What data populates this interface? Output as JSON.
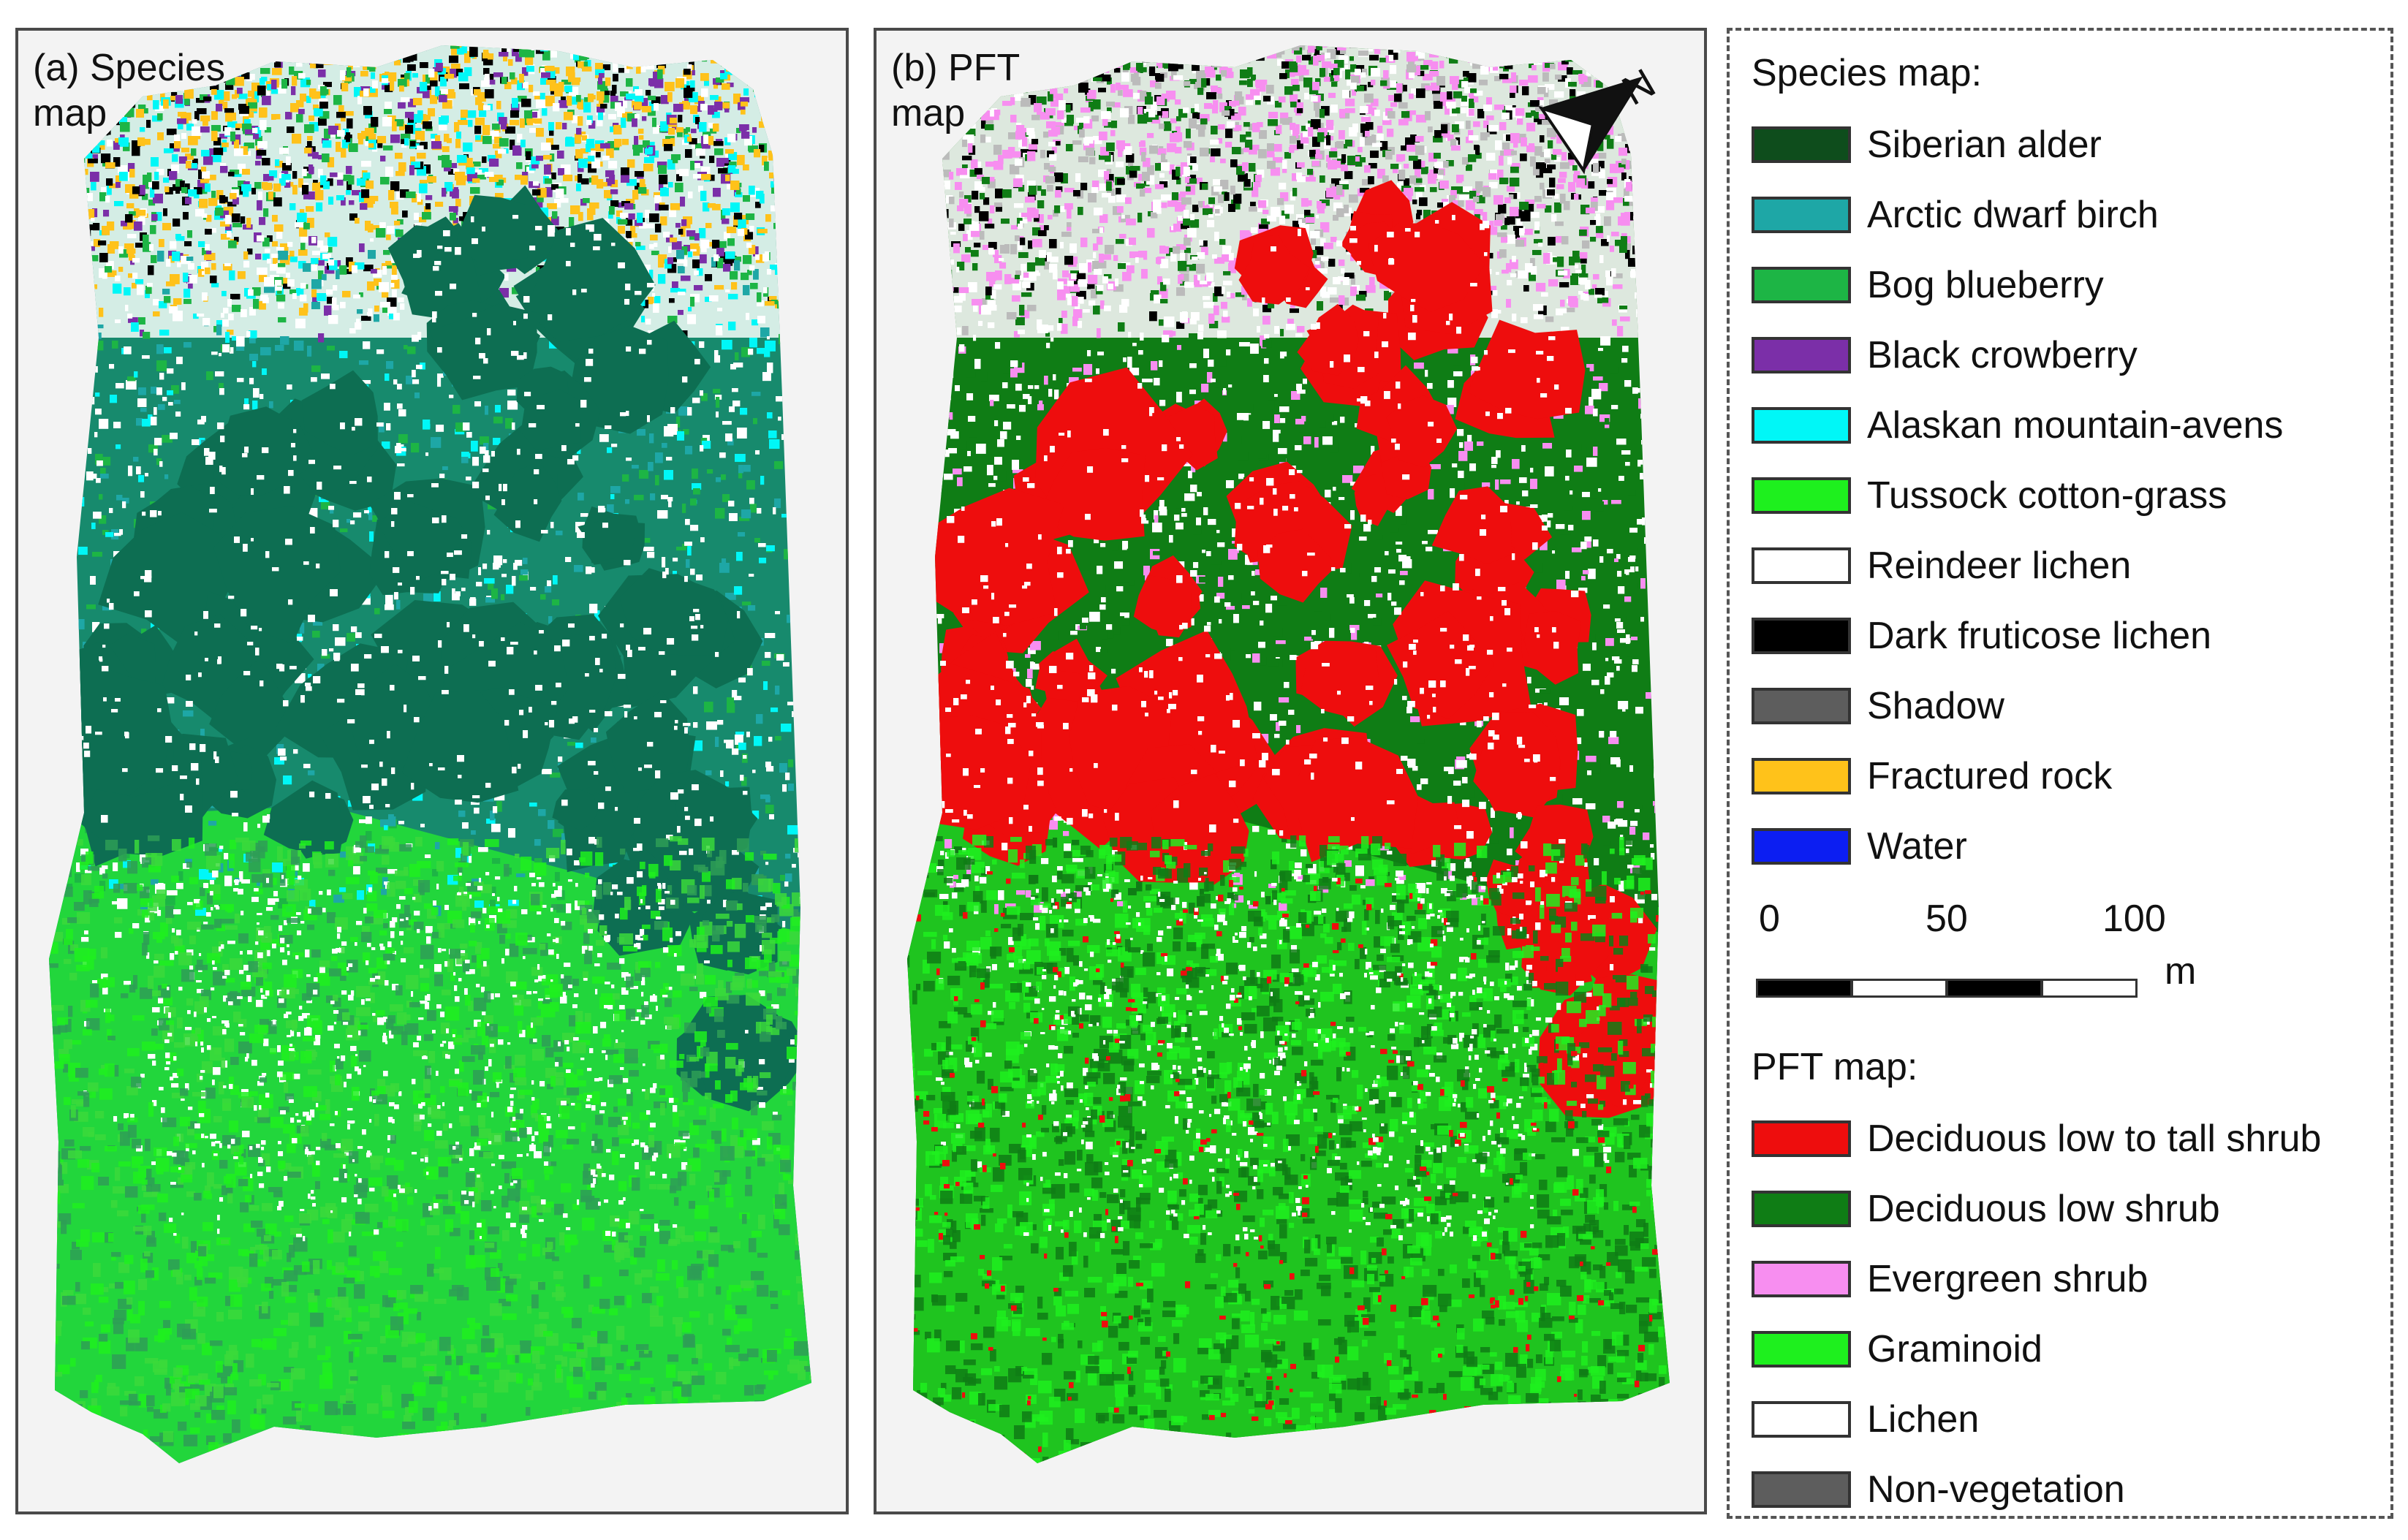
{
  "panels": {
    "a": {
      "label": "(a) Species\nmap"
    },
    "b": {
      "label": "(b) PFT\nmap",
      "north_letter": "N"
    }
  },
  "legend": {
    "species_title": "Species map:",
    "species": [
      {
        "name": "Siberian alder",
        "color": "#0e4d1c"
      },
      {
        "name": "Arctic dwarf birch",
        "color": "#1ea7a6"
      },
      {
        "name": "Bog blueberry",
        "color": "#1db545"
      },
      {
        "name": "Black crowberry",
        "color": "#7b2fa8"
      },
      {
        "name": "Alaskan mountain-avens",
        "color": "#00f7f7"
      },
      {
        "name": "Tussock cotton-grass",
        "color": "#1ef01e"
      },
      {
        "name": "Reindeer lichen",
        "color": "#ffffff"
      },
      {
        "name": "Dark fruticose lichen",
        "color": "#000000"
      },
      {
        "name": "Shadow",
        "color": "#5d5d5d"
      },
      {
        "name": "Fractured rock",
        "color": "#ffc21a"
      },
      {
        "name": "Water",
        "color": "#0c1ef2"
      }
    ],
    "scale": {
      "ticks": [
        "0",
        "50",
        "100"
      ],
      "unit": "m"
    },
    "pft_title": "PFT map:",
    "pft": [
      {
        "name": "Deciduous low to tall shrub",
        "color": "#ee0d0d"
      },
      {
        "name": "Deciduous low shrub",
        "color": "#0f7d15"
      },
      {
        "name": "Evergreen shrub",
        "color": "#f78ef0"
      },
      {
        "name": "Graminoid",
        "color": "#1ef01e"
      },
      {
        "name": "Lichen",
        "color": "#ffffff"
      },
      {
        "name": "Non-vegetation",
        "color": "#5d5d5d"
      }
    ]
  },
  "map_colors": {
    "species": {
      "upper_base": "#178a6d",
      "lower_base": "#22d63c",
      "lower_fine": [
        "#1ef01e",
        "#2e9e56",
        "#3bd93b"
      ],
      "patches": "#0d6e52",
      "rock": "#ffc21a",
      "lichen": "#ffffff",
      "cyan": "#00f7f7",
      "dark": "#000000",
      "purple": "#7b2fa8"
    },
    "pft": {
      "upper_base": "#0f7d15",
      "lower_base": "#1fc41f",
      "lower_fine": [
        "#0f7d15",
        "#1ef01e"
      ],
      "patches": "#ee0d0d",
      "pink": "#f78ef0",
      "lichen": "#ffffff",
      "dark": "#000000"
    }
  }
}
